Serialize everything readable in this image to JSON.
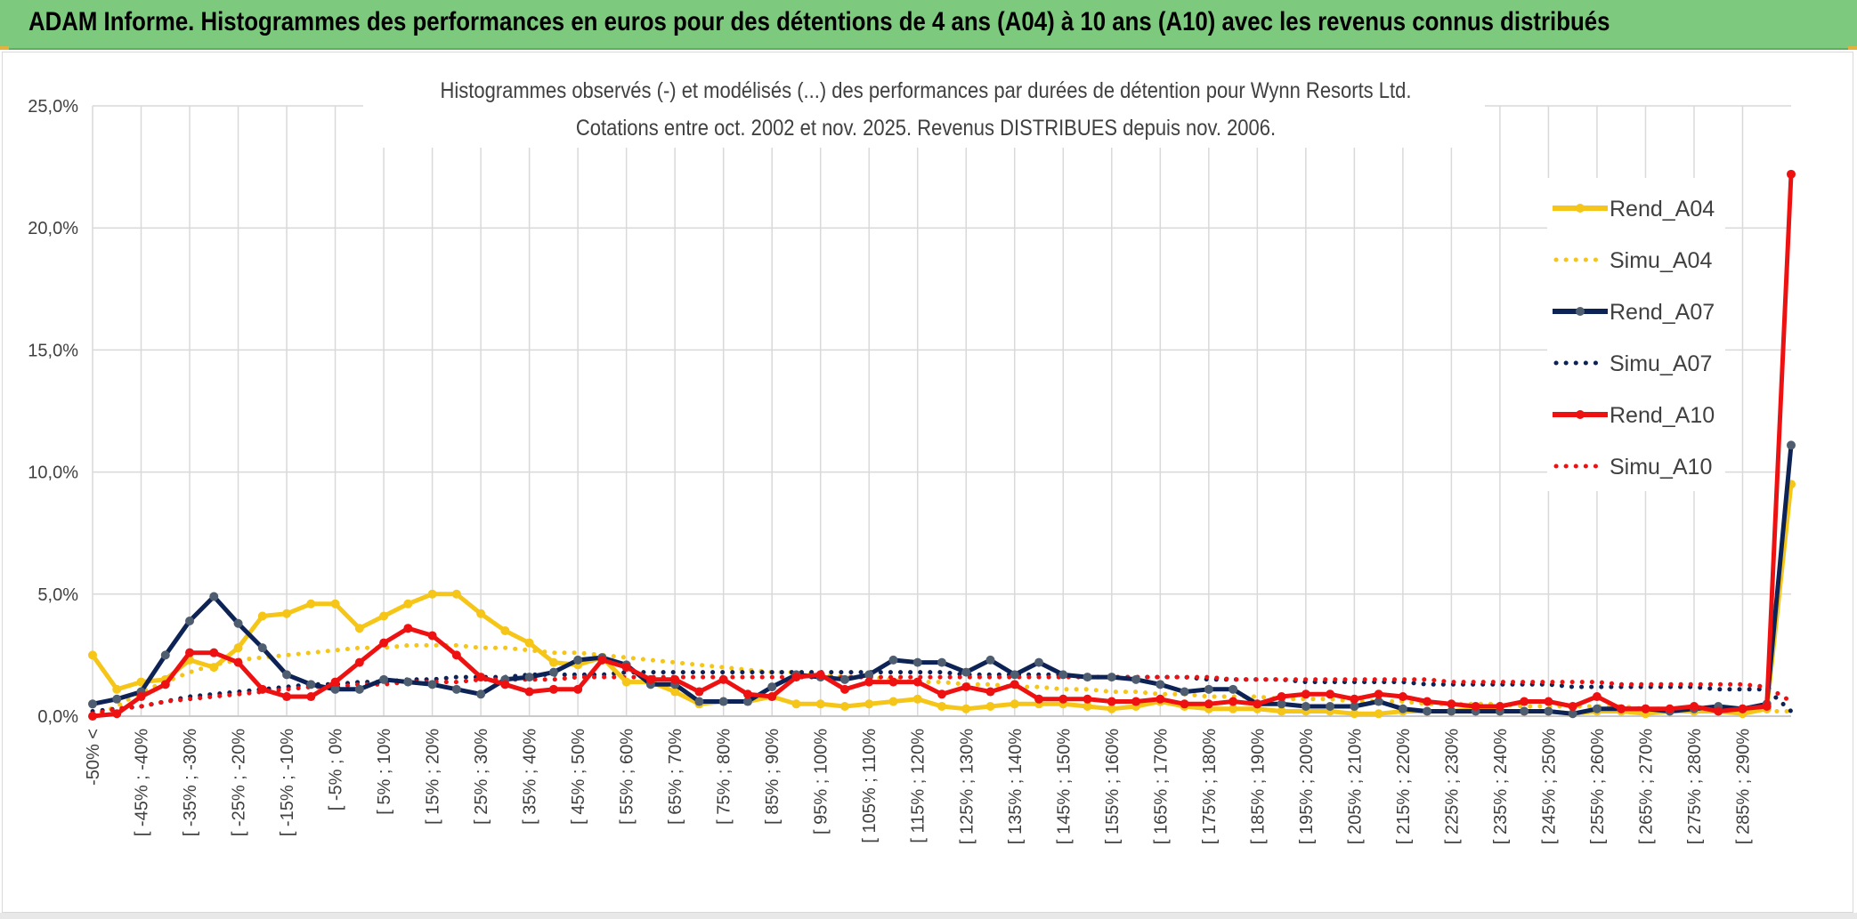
{
  "header": {
    "title": "ADAM Informe. Histogrammes des performances en euros pour des détentions de 4 ans (A04) à 10 ans (A10) avec les revenus connus distribués"
  },
  "colors": {
    "header_bg": "#7dc97e",
    "a04": "#f5c518",
    "a07": "#0d2356",
    "a07_marker": "#4e5d70",
    "a10": "#ee1111",
    "grid": "#d9d9d9"
  },
  "chart_data": {
    "type": "line",
    "title": "Histogrammes observés (-) et modélisés (...) des performances par durées de détention pour Wynn Resorts Ltd.",
    "subtitle": "Cotations entre oct. 2002 et nov. 2025. Revenus DISTRIBUES depuis nov. 2006.",
    "ylim": [
      0,
      25
    ],
    "yticks": [
      "0,0%",
      "5,0%",
      "10,0%",
      "15,0%",
      "20,0%",
      "25,0%"
    ],
    "tick_labels": [
      "-50% <",
      "[ -45% ; -40%",
      "[ -35% ; -30%",
      "[ -25% ; -20%",
      "[ -15% ; -10%",
      "[ -5% ; 0%",
      "[ 5% ; 10%",
      "[ 15% ; 20%",
      "[ 25% ; 30%",
      "[ 35% ; 40%",
      "[ 45% ; 50%",
      "[ 55% ; 60%",
      "[ 65% ; 70%",
      "[ 75% ; 80%",
      "[ 85% ; 90%",
      "[ 95% ; 100%",
      "[ 105% ; 110%",
      "[ 115% ; 120%",
      "[ 125% ; 130%",
      "[ 135% ; 140%",
      "[ 145% ; 150%",
      "[ 155% ; 160%",
      "[ 165% ; 170%",
      "[ 175% ; 180%",
      "[ 185% ; 190%",
      "[ 195% ; 200%",
      "[ 205% ; 210%",
      "[ 215% ; 220%",
      "[ 225% ; 230%",
      "[ 235% ; 240%",
      "[ 245% ; 250%",
      "[ 255% ; 260%",
      "[ 265% ; 270%",
      "[ 275% ; 280%",
      "[ 285% ; 290%"
    ],
    "legend_position": "right",
    "grid": true,
    "series": [
      {
        "name": "Rend_A04",
        "style": "solid",
        "color": "#f5c518",
        "values": [
          2.5,
          1.1,
          1.4,
          1.5,
          2.3,
          2.0,
          2.8,
          4.1,
          4.2,
          4.6,
          4.6,
          3.6,
          4.1,
          4.6,
          5.0,
          5.0,
          4.2,
          3.5,
          3.0,
          2.2,
          2.1,
          2.4,
          1.4,
          1.4,
          1.0,
          0.5,
          0.6,
          0.6,
          0.8,
          0.5,
          0.5,
          0.4,
          0.5,
          0.6,
          0.7,
          0.4,
          0.3,
          0.4,
          0.5,
          0.5,
          0.5,
          0.4,
          0.3,
          0.4,
          0.6,
          0.4,
          0.3,
          0.3,
          0.3,
          0.2,
          0.2,
          0.2,
          0.1,
          0.1,
          0.2,
          0.2,
          0.2,
          0.3,
          0.2,
          0.2,
          0.2,
          0.1,
          0.2,
          0.2,
          0.1,
          0.2,
          0.2,
          0.2,
          0.1,
          0.3,
          9.5
        ]
      },
      {
        "name": "Simu_A04",
        "style": "dotted",
        "color": "#f5c518",
        "values": [
          0.0,
          0.4,
          1.0,
          1.4,
          1.8,
          2.1,
          2.3,
          2.4,
          2.5,
          2.6,
          2.7,
          2.8,
          2.8,
          2.9,
          2.9,
          2.9,
          2.8,
          2.8,
          2.7,
          2.6,
          2.6,
          2.5,
          2.4,
          2.3,
          2.2,
          2.1,
          2.0,
          1.9,
          1.8,
          1.8,
          1.7,
          1.6,
          1.6,
          1.5,
          1.4,
          1.4,
          1.3,
          1.3,
          1.2,
          1.2,
          1.1,
          1.1,
          1.0,
          1.0,
          0.9,
          0.9,
          0.8,
          0.8,
          0.8,
          0.7,
          0.7,
          0.7,
          0.6,
          0.6,
          0.6,
          0.5,
          0.5,
          0.5,
          0.5,
          0.4,
          0.4,
          0.4,
          0.4,
          0.4,
          0.3,
          0.3,
          0.3,
          0.3,
          0.3,
          0.2,
          0.2
        ]
      },
      {
        "name": "Rend_A07",
        "style": "solid",
        "color": "#0d2356",
        "values": [
          0.5,
          0.7,
          1.0,
          2.5,
          3.9,
          4.9,
          3.8,
          2.8,
          1.7,
          1.3,
          1.1,
          1.1,
          1.5,
          1.4,
          1.3,
          1.1,
          0.9,
          1.5,
          1.6,
          1.8,
          2.3,
          2.4,
          2.1,
          1.3,
          1.3,
          0.6,
          0.6,
          0.6,
          1.2,
          1.7,
          1.6,
          1.5,
          1.7,
          2.3,
          2.2,
          2.2,
          1.8,
          2.3,
          1.7,
          2.2,
          1.7,
          1.6,
          1.6,
          1.5,
          1.3,
          1.0,
          1.1,
          1.1,
          0.5,
          0.5,
          0.4,
          0.4,
          0.4,
          0.6,
          0.3,
          0.2,
          0.2,
          0.2,
          0.2,
          0.2,
          0.2,
          0.1,
          0.3,
          0.3,
          0.3,
          0.2,
          0.3,
          0.4,
          0.3,
          0.5,
          11.1
        ]
      },
      {
        "name": "Simu_A07",
        "style": "dotted",
        "color": "#0d2356",
        "values": [
          0.2,
          0.3,
          0.4,
          0.6,
          0.8,
          0.9,
          1.0,
          1.1,
          1.2,
          1.3,
          1.3,
          1.4,
          1.4,
          1.5,
          1.5,
          1.6,
          1.6,
          1.6,
          1.7,
          1.7,
          1.7,
          1.7,
          1.8,
          1.8,
          1.8,
          1.8,
          1.8,
          1.8,
          1.8,
          1.8,
          1.8,
          1.8,
          1.8,
          1.8,
          1.8,
          1.8,
          1.7,
          1.7,
          1.7,
          1.7,
          1.7,
          1.6,
          1.6,
          1.6,
          1.6,
          1.6,
          1.5,
          1.5,
          1.5,
          1.5,
          1.4,
          1.4,
          1.4,
          1.4,
          1.4,
          1.3,
          1.3,
          1.3,
          1.3,
          1.3,
          1.3,
          1.2,
          1.2,
          1.2,
          1.2,
          1.2,
          1.2,
          1.1,
          1.1,
          1.1,
          0.2
        ]
      },
      {
        "name": "Rend_A10",
        "style": "solid",
        "color": "#ee1111",
        "values": [
          0.0,
          0.1,
          0.8,
          1.3,
          2.6,
          2.6,
          2.2,
          1.1,
          0.8,
          0.8,
          1.4,
          2.2,
          3.0,
          3.6,
          3.3,
          2.5,
          1.6,
          1.3,
          1.0,
          1.1,
          1.1,
          2.3,
          2.0,
          1.5,
          1.5,
          1.0,
          1.5,
          0.9,
          0.8,
          1.6,
          1.7,
          1.1,
          1.4,
          1.4,
          1.4,
          0.9,
          1.2,
          1.0,
          1.3,
          0.7,
          0.7,
          0.7,
          0.6,
          0.6,
          0.7,
          0.5,
          0.5,
          0.6,
          0.5,
          0.8,
          0.9,
          0.9,
          0.7,
          0.9,
          0.8,
          0.6,
          0.5,
          0.4,
          0.4,
          0.6,
          0.6,
          0.4,
          0.8,
          0.3,
          0.3,
          0.3,
          0.4,
          0.2,
          0.3,
          0.4,
          22.2
        ]
      },
      {
        "name": "Simu_A10",
        "style": "dotted",
        "color": "#ee1111",
        "values": [
          0.1,
          0.3,
          0.4,
          0.6,
          0.7,
          0.8,
          0.9,
          1.0,
          1.1,
          1.2,
          1.2,
          1.3,
          1.3,
          1.4,
          1.4,
          1.4,
          1.5,
          1.5,
          1.5,
          1.5,
          1.6,
          1.6,
          1.6,
          1.6,
          1.6,
          1.6,
          1.6,
          1.6,
          1.6,
          1.6,
          1.6,
          1.6,
          1.6,
          1.6,
          1.6,
          1.6,
          1.6,
          1.6,
          1.6,
          1.6,
          1.6,
          1.6,
          1.6,
          1.6,
          1.6,
          1.6,
          1.6,
          1.5,
          1.5,
          1.5,
          1.5,
          1.5,
          1.5,
          1.5,
          1.5,
          1.5,
          1.4,
          1.4,
          1.4,
          1.4,
          1.4,
          1.4,
          1.4,
          1.3,
          1.3,
          1.3,
          1.3,
          1.3,
          1.3,
          1.2,
          0.6
        ]
      }
    ]
  }
}
